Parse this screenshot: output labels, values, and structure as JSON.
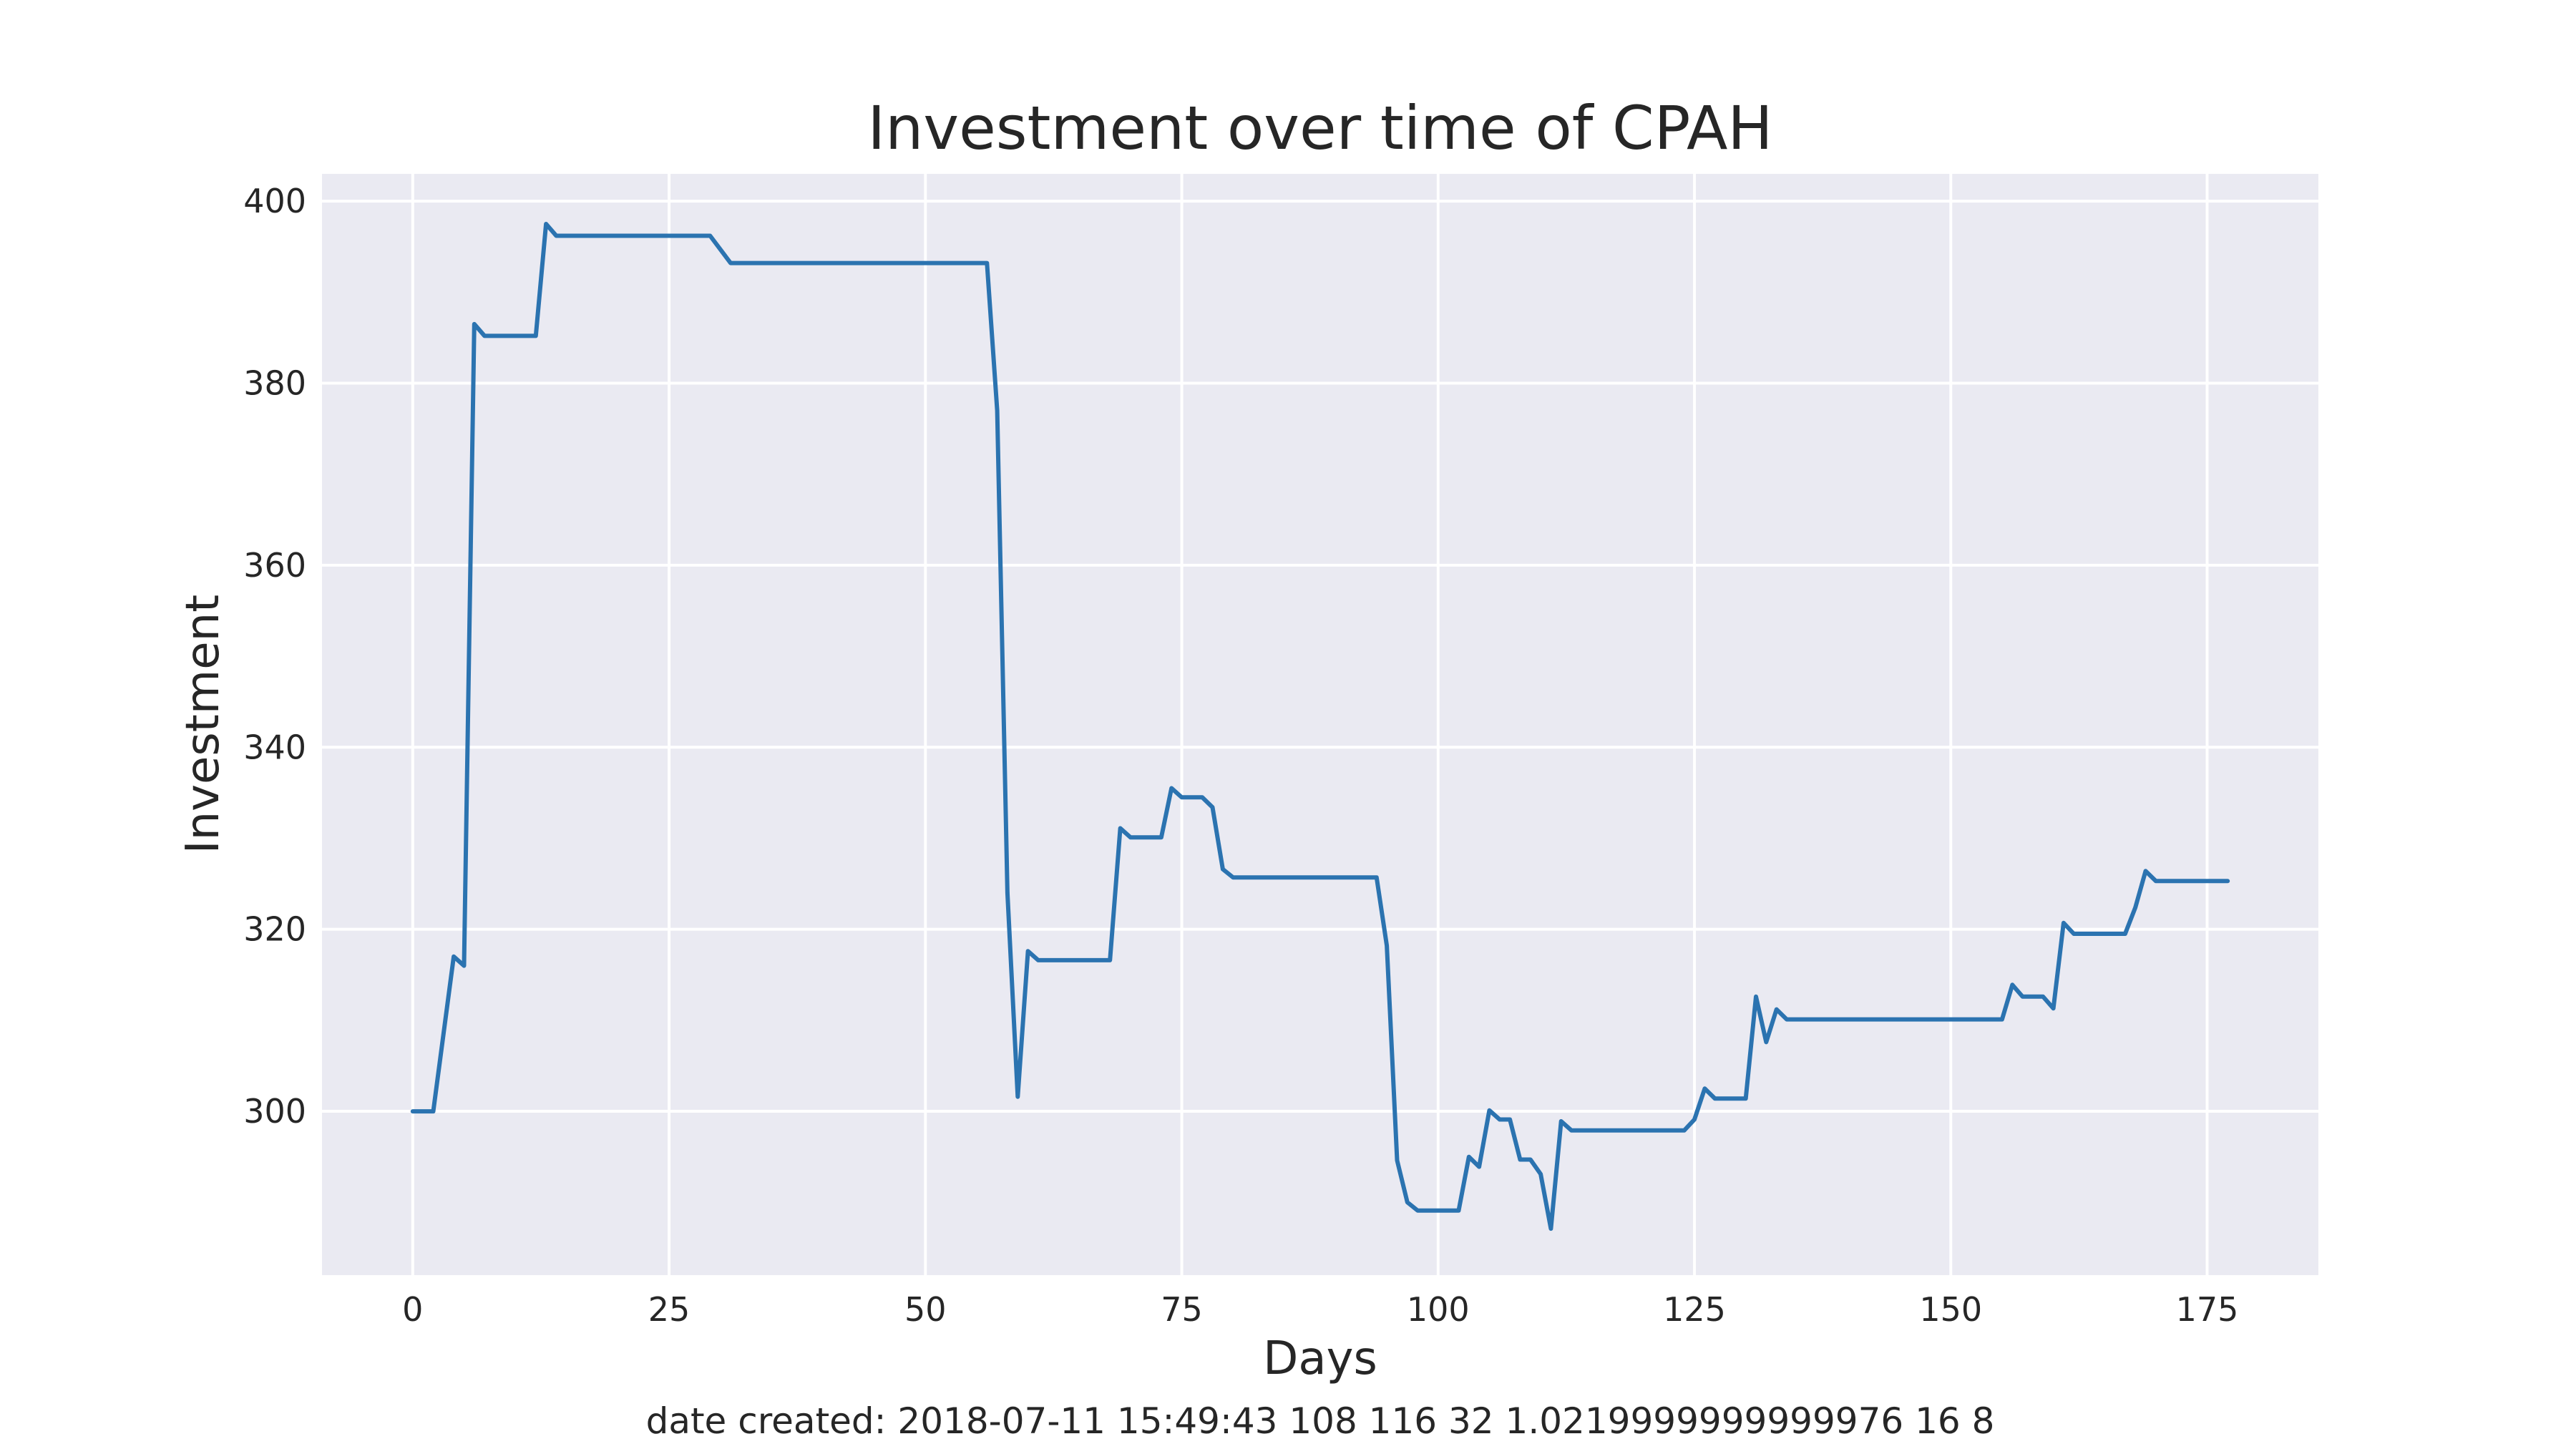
{
  "chart_data": {
    "type": "line",
    "title": "Investment over time of CPAH",
    "xlabel": "Days",
    "ylabel": "Investment",
    "footer": "date created: 2018-07-11 15:49:43 108 116 32 1.0219999999999976 16 8",
    "xlim": [
      -8.85,
      185.85
    ],
    "ylim": [
      282,
      403
    ],
    "xticks": [
      0,
      25,
      50,
      75,
      100,
      125,
      150,
      175
    ],
    "yticks": [
      300,
      320,
      340,
      360,
      380,
      400
    ],
    "grid": true,
    "style": "seaborn-darkgrid",
    "colors": {
      "background": "#eaeaf2",
      "grid": "#ffffff",
      "line": "#2b73b0",
      "text": "#262626"
    },
    "series": [
      {
        "x": [
          0,
          2,
          4,
          5,
          6,
          7,
          12,
          13,
          14,
          29,
          31,
          56,
          57,
          58,
          59,
          60,
          61,
          68,
          69,
          70,
          73,
          74,
          75,
          77,
          78,
          79,
          80,
          94,
          95,
          96,
          97,
          98,
          102,
          103,
          104,
          105,
          106,
          107,
          108,
          109,
          110,
          111,
          112,
          113,
          124,
          125,
          126,
          127,
          130,
          131,
          132,
          133,
          134,
          155,
          156,
          157,
          159,
          160,
          161,
          162,
          167,
          168,
          169,
          170,
          177
        ],
        "y": [
          300,
          300,
          317,
          316,
          386.5,
          385.2,
          385.2,
          397.5,
          396.2,
          396.2,
          393.2,
          393.2,
          377,
          324,
          301.6,
          317.6,
          316.6,
          316.6,
          331.1,
          330.1,
          330.1,
          335.5,
          334.5,
          334.5,
          333.4,
          326.6,
          325.7,
          325.7,
          318.2,
          294.6,
          290,
          289.1,
          289.1,
          295,
          293.9,
          300.1,
          299.1,
          299.1,
          294.7,
          294.7,
          293.1,
          287.1,
          298.9,
          297.9,
          297.9,
          299.1,
          302.5,
          301.4,
          301.4,
          312.6,
          307.6,
          311.2,
          310.1,
          310.1,
          313.9,
          312.6,
          312.6,
          311.3,
          320.7,
          319.5,
          319.5,
          322.4,
          326.4,
          325.3,
          325.3
        ]
      }
    ]
  }
}
